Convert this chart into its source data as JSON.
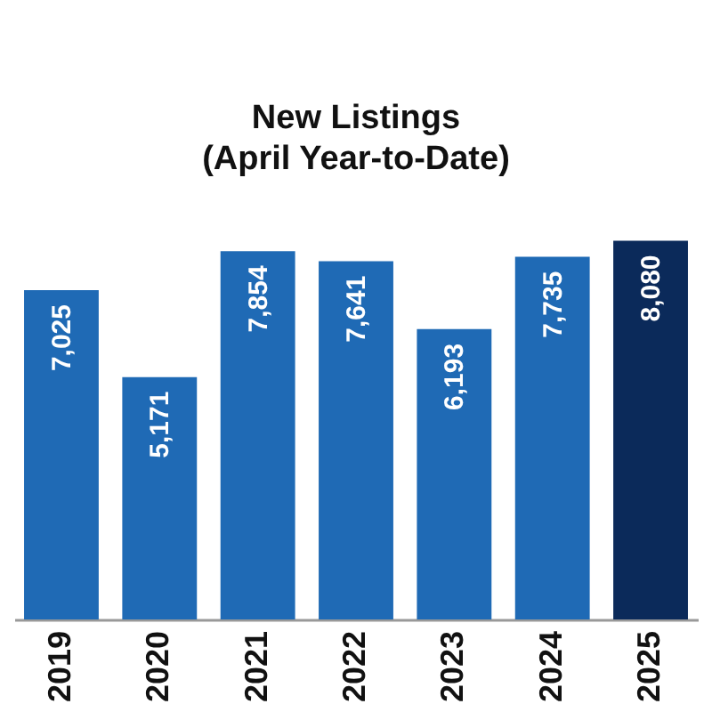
{
  "chart_data": {
    "type": "bar",
    "title": "New Listings\n(April Year-to-Date)",
    "categories": [
      "2019",
      "2020",
      "2021",
      "2022",
      "2023",
      "2024",
      "2025"
    ],
    "values": [
      7025,
      5171,
      7854,
      7641,
      6193,
      7735,
      8080
    ],
    "colors": [
      "#1f6ab5",
      "#1f6ab5",
      "#1f6ab5",
      "#1f6ab5",
      "#1f6ab5",
      "#1f6ab5",
      "#0b2a5a"
    ],
    "value_labels": [
      "7,025",
      "5,171",
      "7,854",
      "7,641",
      "6,193",
      "7,735",
      "8,080"
    ],
    "grid": false,
    "legend": false
  }
}
